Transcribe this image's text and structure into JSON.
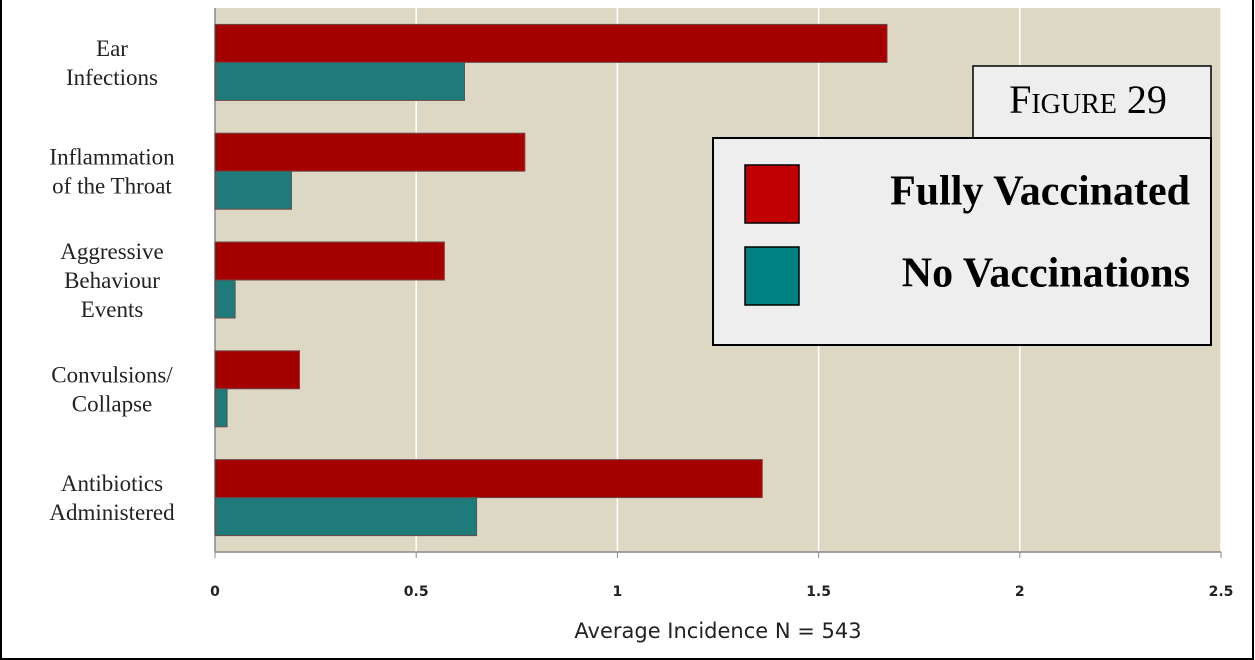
{
  "chart_data": {
    "type": "barh",
    "title": "Figure 29",
    "xlabel": "Average Incidence N = 543",
    "categories": [
      "Ear\nInfections",
      "Inflammation\nof the Throat",
      "Aggressive\nBehaviour\nEvents",
      "Convulsions/\nCollapse",
      "Antibiotics\nAdministered"
    ],
    "series": [
      {
        "name": "Fully Vaccinated",
        "color": "#a50000",
        "legend_color": "#c00000",
        "values": [
          1.67,
          0.77,
          0.57,
          0.21,
          1.36
        ]
      },
      {
        "name": "No Vaccinations",
        "color": "#1f7a7a",
        "legend_color": "#008080",
        "values": [
          0.62,
          0.19,
          0.05,
          0.03,
          0.65
        ]
      }
    ],
    "xlim": [
      0,
      2.5
    ],
    "xticks": [
      0,
      0.5,
      1,
      1.5,
      2,
      2.5
    ],
    "grid": true,
    "legend": "right"
  }
}
